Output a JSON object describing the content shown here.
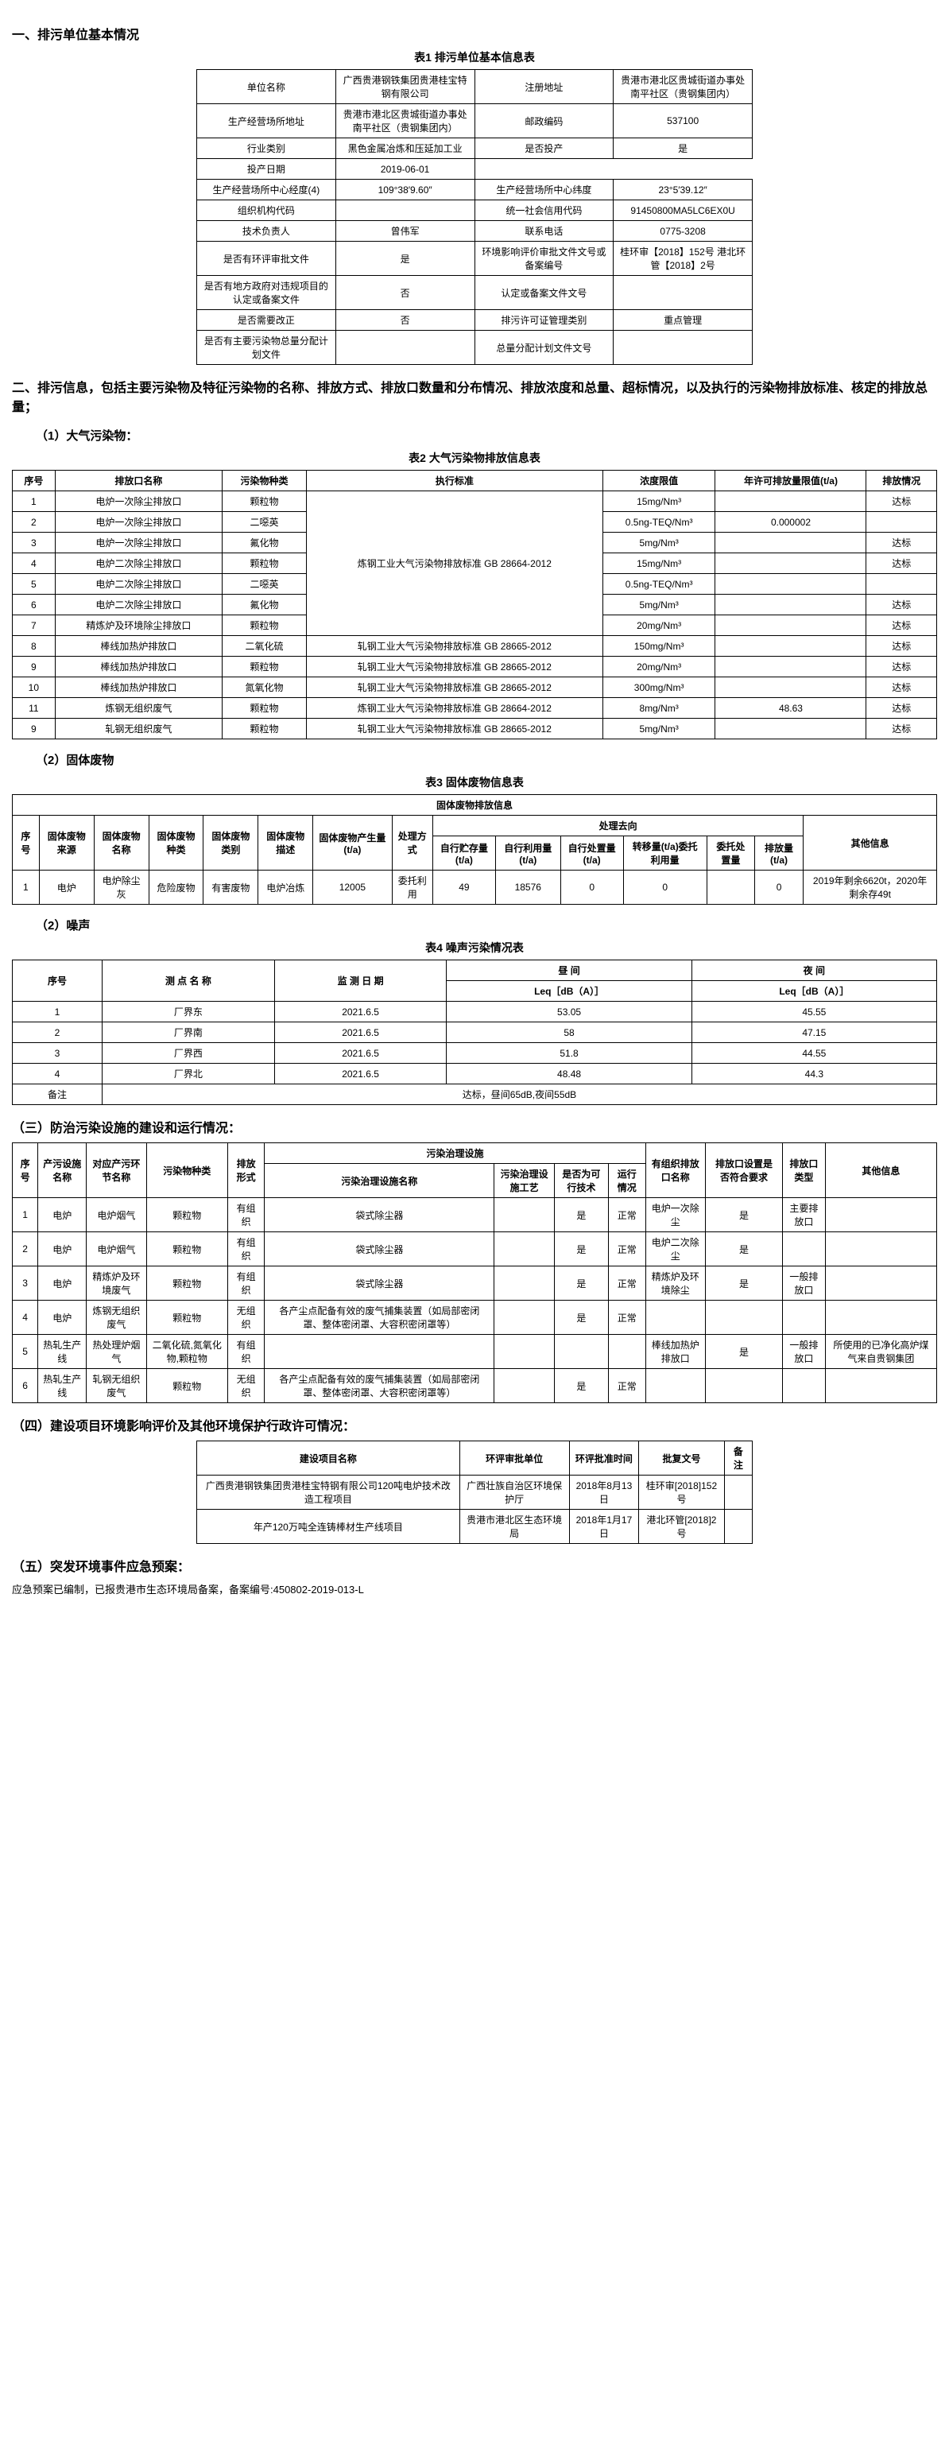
{
  "s1": {
    "title": "一、排污单位基本情况",
    "cap": "表1 排污单位基本信息表",
    "r": [
      [
        "单位名称",
        "广西贵港钢铁集团贵港桂宝特钢有限公司",
        "注册地址",
        "贵港市港北区贵城街道办事处南平社区（贵钢集团内）"
      ],
      [
        "生产经营场所地址",
        "贵港市港北区贵城街道办事处南平社区（贵钢集团内）",
        "邮政编码",
        "537100"
      ],
      [
        "行业类别",
        "黑色金属冶炼和压延加工业",
        "是否投产",
        "是"
      ],
      [
        "投产日期",
        "2019-06-01",
        "",
        ""
      ],
      [
        "生产经营场所中心经度(4)",
        "109°38′9.60″",
        "生产经营场所中心纬度",
        "23°5′39.12″"
      ],
      [
        "组织机构代码",
        "",
        "统一社会信用代码",
        "91450800MA5LC6EX0U"
      ],
      [
        "技术负责人",
        "曾伟军",
        "联系电话",
        "0775-3208"
      ],
      [
        "是否有环评审批文件",
        "是",
        "环境影响评价审批文件文号或备案编号",
        "桂环审【2018】152号 港北环管【2018】2号"
      ],
      [
        "是否有地方政府对违规项目的认定或备案文件",
        "否",
        "认定或备案文件文号",
        ""
      ],
      [
        "是否需要改正",
        "否",
        "排污许可证管理类别",
        "重点管理"
      ],
      [
        "是否有主要污染物总量分配计划文件",
        "",
        "总量分配计划文件文号",
        ""
      ]
    ]
  },
  "s2": {
    "title": "二、排污信息，包括主要污染物及特征污染物的名称、排放方式、排放口数量和分布情况、排放浓度和总量、超标情况，以及执行的污染物排放标准、核定的排放总量；",
    "sub1": "（1）大气污染物：",
    "cap1": "表2 大气污染物排放信息表",
    "h1": [
      "序号",
      "排放口名称",
      "污染物种类",
      "执行标准",
      "浓度限值",
      "年许可排放量限值(t/a)",
      "排放情况"
    ],
    "r1": [
      [
        "1",
        "电炉一次除尘排放口",
        "颗粒物",
        "炼钢工业大气污染物排放标准 GB 28664-2012",
        "15mg/Nm³",
        "",
        "达标"
      ],
      [
        "2",
        "电炉一次除尘排放口",
        "二噁英",
        "",
        "0.5ng-TEQ/Nm³",
        "0.000002",
        ""
      ],
      [
        "3",
        "电炉一次除尘排放口",
        "氟化物",
        "",
        "5mg/Nm³",
        "",
        "达标"
      ],
      [
        "4",
        "电炉二次除尘排放口",
        "颗粒物",
        "",
        "15mg/Nm³",
        "",
        "达标"
      ],
      [
        "5",
        "电炉二次除尘排放口",
        "二噁英",
        "",
        "0.5ng-TEQ/Nm³",
        "",
        ""
      ],
      [
        "6",
        "电炉二次除尘排放口",
        "氟化物",
        "",
        "5mg/Nm³",
        "",
        "达标"
      ],
      [
        "7",
        "精炼炉及环境除尘排放口",
        "颗粒物",
        "",
        "20mg/Nm³",
        "",
        "达标"
      ],
      [
        "8",
        "棒线加热炉排放口",
        "二氧化硫",
        "轧钢工业大气污染物排放标准 GB 28665-2012",
        "150mg/Nm³",
        "",
        "达标"
      ],
      [
        "9",
        "棒线加热炉排放口",
        "颗粒物",
        "轧钢工业大气污染物排放标准 GB 28665-2012",
        "20mg/Nm³",
        "",
        "达标"
      ],
      [
        "10",
        "棒线加热炉排放口",
        "氮氧化物",
        "轧钢工业大气污染物排放标准 GB 28665-2012",
        "300mg/Nm³",
        "",
        "达标"
      ],
      [
        "11",
        "炼钢无组织废气",
        "颗粒物",
        "炼钢工业大气污染物排放标准 GB 28664-2012",
        "8mg/Nm³",
        "48.63",
        "达标"
      ],
      [
        "9",
        "轧钢无组织废气",
        "颗粒物",
        "轧钢工业大气污染物排放标准 GB 28665-2012",
        "5mg/Nm³",
        "",
        "达标"
      ]
    ],
    "sub2": "（2）固体废物",
    "cap2": "表3 固体废物信息表",
    "cap2b": "固体废物排放信息",
    "h2a": [
      "序号",
      "固体废物来源",
      "固体废物名称",
      "固体废物种类",
      "固体废物类别",
      "固体废物描述",
      "固体废物产生量(t/a)",
      "处理方式"
    ],
    "h2b": [
      "自行贮存量(t/a)",
      "自行利用量(t/a)",
      "自行处置量(t/a)",
      "转移量(t/a)委托利用量",
      "委托处置量",
      "排放量(t/a)"
    ],
    "h2c": "处理去向",
    "h2d": "其他信息",
    "r2": [
      "1",
      "电炉",
      "电炉除尘灰",
      "危险废物",
      "有害废物",
      "电炉冶炼",
      "12005",
      "委托利用",
      "49",
      "18576",
      "0",
      "0",
      "",
      "0",
      "2019年剩余6620t，2020年剩余存49t"
    ],
    "sub3": "（2）噪声",
    "cap3": "表4 噪声污染情况表",
    "h3": [
      "序号",
      "测 点 名 称",
      "监 测 日 期",
      "昼 间",
      "夜 间"
    ],
    "h3b": [
      "Leq［dB（A）］",
      "Leq［dB（A）］"
    ],
    "r3": [
      [
        "1",
        "厂界东",
        "2021.6.5",
        "53.05",
        "45.55"
      ],
      [
        "2",
        "厂界南",
        "2021.6.5",
        "58",
        "47.15"
      ],
      [
        "3",
        "厂界西",
        "2021.6.5",
        "51.8",
        "44.55"
      ],
      [
        "4",
        "厂界北",
        "2021.6.5",
        "48.48",
        "44.3"
      ]
    ],
    "r3b": [
      "备注",
      "达标，昼间65dB,夜间55dB"
    ]
  },
  "s3": {
    "title": "（三）防治污染设施的建设和运行情况：",
    "h": [
      "序号",
      "产污设施名称",
      "对应产污环节名称",
      "污染物种类",
      "排放形式",
      "污染治理设施名称",
      "污染治理设施工艺",
      "是否为可行技术",
      "运行情况",
      "有组织排放口名称",
      "排放口设置是否符合要求",
      "排放口类型",
      "其他信息"
    ],
    "hb": "污染治理设施",
    "r": [
      [
        "1",
        "电炉",
        "电炉烟气",
        "颗粒物",
        "有组织",
        "袋式除尘器",
        "",
        "是",
        "正常",
        "电炉一次除尘",
        "是",
        "主要排放口",
        ""
      ],
      [
        "2",
        "电炉",
        "电炉烟气",
        "颗粒物",
        "有组织",
        "袋式除尘器",
        "",
        "是",
        "正常",
        "电炉二次除尘",
        "是",
        "",
        ""
      ],
      [
        "3",
        "电炉",
        "精炼炉及环境废气",
        "颗粒物",
        "有组织",
        "袋式除尘器",
        "",
        "是",
        "正常",
        "精炼炉及环境除尘",
        "是",
        "一般排放口",
        ""
      ],
      [
        "4",
        "电炉",
        "炼钢无组织废气",
        "颗粒物",
        "无组织",
        "各产尘点配备有效的废气捕集装置（如局部密闭罩、整体密闭罩、大容积密闭罩等）",
        "",
        "是",
        "正常",
        "",
        "",
        "",
        ""
      ],
      [
        "5",
        "热轧生产线",
        "热处理炉烟气",
        "二氧化硫,氮氧化物,颗粒物",
        "有组织",
        "",
        "",
        "",
        "",
        "棒线加热炉排放口",
        "是",
        "一般排放口",
        "所使用的已净化高炉煤气来自贵钢集团"
      ],
      [
        "6",
        "热轧生产线",
        "轧钢无组织废气",
        "颗粒物",
        "无组织",
        "各产尘点配备有效的废气捕集装置（如局部密闭罩、整体密闭罩、大容积密闭罩等）",
        "",
        "是",
        "正常",
        "",
        "",
        "",
        ""
      ]
    ]
  },
  "s4": {
    "title": "（四）建设项目环境影响评价及其他环境保护行政许可情况：",
    "h": [
      "建设项目名称",
      "环评审批单位",
      "环评批准时间",
      "批复文号",
      "备注"
    ],
    "r": [
      [
        "广西贵港钢铁集团贵港桂宝特钢有限公司120吨电炉技术改造工程项目",
        "广西壮族自治区环境保护厅",
        "2018年8月13日",
        "桂环审[2018]152号",
        ""
      ],
      [
        "年产120万吨全连铸棒材生产线项目",
        "贵港市港北区生态环境局",
        "2018年1月17日",
        "港北环管[2018]2号",
        ""
      ]
    ]
  },
  "s5": {
    "title": "（五）突发环境事件应急预案：",
    "text": "应急预案已编制，已报贵港市生态环境局备案，备案编号:450802-2019-013-L"
  }
}
